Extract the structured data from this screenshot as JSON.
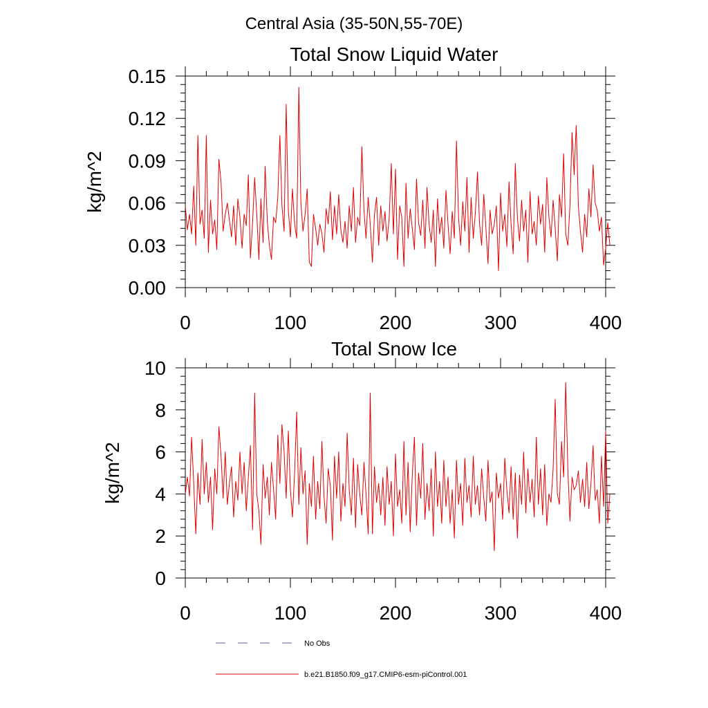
{
  "figure_title": "Central Asia (35-50N,55-70E)",
  "colors": {
    "model": "#e00000",
    "obs": "#5a5a9a",
    "axis": "#000000"
  },
  "legend": [
    {
      "label": "No Obs",
      "style": "dashed",
      "color": "#5a5a9a"
    },
    {
      "label": "b.e21.B1850.f09_g17.CMIP6-esm-piControl.001",
      "style": "solid",
      "color": "#e00000"
    }
  ],
  "chart_data": [
    {
      "type": "line",
      "title": "Total Snow Liquid Water",
      "xlabel": "",
      "ylabel": "kg/m^2",
      "xlim": [
        0,
        400
      ],
      "ylim": [
        0,
        0.15
      ],
      "x_ticks": [
        0,
        100,
        200,
        300,
        400
      ],
      "x_tick_labels": [
        "0",
        "100",
        "200",
        "300",
        "400"
      ],
      "y_ticks": [
        0,
        0.03,
        0.06,
        0.09,
        0.12,
        0.15
      ],
      "y_tick_labels": [
        "0.00",
        "0.03",
        "0.06",
        "0.09",
        "0.12",
        "0.15"
      ],
      "series": [
        {
          "name": "b.e21.B1850.f09_g17.CMIP6-esm-piControl.001",
          "x_start": 0,
          "x_step": 2,
          "values": [
            0.058,
            0.041,
            0.052,
            0.038,
            0.072,
            0.03,
            0.108,
            0.045,
            0.055,
            0.035,
            0.108,
            0.025,
            0.062,
            0.038,
            0.048,
            0.027,
            0.091,
            0.075,
            0.04,
            0.052,
            0.06,
            0.048,
            0.036,
            0.058,
            0.03,
            0.063,
            0.05,
            0.028,
            0.052,
            0.044,
            0.08,
            0.021,
            0.046,
            0.078,
            0.052,
            0.02,
            0.063,
            0.032,
            0.086,
            0.047,
            0.03,
            0.02,
            0.05,
            0.046,
            0.064,
            0.108,
            0.058,
            0.04,
            0.13,
            0.055,
            0.036,
            0.07,
            0.045,
            0.035,
            0.142,
            0.06,
            0.04,
            0.052,
            0.07,
            0.018,
            0.015,
            0.052,
            0.042,
            0.03,
            0.045,
            0.038,
            0.025,
            0.056,
            0.045,
            0.068,
            0.034,
            0.058,
            0.038,
            0.066,
            0.041,
            0.032,
            0.047,
            0.028,
            0.058,
            0.04,
            0.071,
            0.032,
            0.05,
            0.044,
            0.1,
            0.055,
            0.035,
            0.064,
            0.045,
            0.018,
            0.052,
            0.064,
            0.03,
            0.058,
            0.04,
            0.054,
            0.033,
            0.049,
            0.088,
            0.038,
            0.084,
            0.02,
            0.058,
            0.05,
            0.015,
            0.074,
            0.035,
            0.056,
            0.042,
            0.027,
            0.077,
            0.046,
            0.037,
            0.062,
            0.028,
            0.071,
            0.045,
            0.032,
            0.055,
            0.015,
            0.063,
            0.038,
            0.05,
            0.028,
            0.069,
            0.045,
            0.024,
            0.054,
            0.035,
            0.104,
            0.05,
            0.03,
            0.061,
            0.04,
            0.078,
            0.025,
            0.064,
            0.035,
            0.053,
            0.082,
            0.045,
            0.03,
            0.066,
            0.043,
            0.017,
            0.055,
            0.038,
            0.045,
            0.058,
            0.012,
            0.067,
            0.04,
            0.052,
            0.029,
            0.075,
            0.045,
            0.024,
            0.088,
            0.05,
            0.033,
            0.062,
            0.04,
            0.055,
            0.018,
            0.068,
            0.038,
            0.047,
            0.03,
            0.065,
            0.045,
            0.059,
            0.025,
            0.078,
            0.05,
            0.036,
            0.062,
            0.042,
            0.019,
            0.066,
            0.05,
            0.095,
            0.038,
            0.03,
            0.058,
            0.11,
            0.08,
            0.115,
            0.058,
            0.04,
            0.025,
            0.052,
            0.036,
            0.07,
            0.05,
            0.087,
            0.06,
            0.055,
            0.04,
            0.05,
            0.016,
            0.028,
            0.046,
            0.03
          ]
        }
      ]
    },
    {
      "type": "line",
      "title": "Total Snow Ice",
      "xlabel": "",
      "ylabel": "kg/m^2",
      "xlim": [
        0,
        400
      ],
      "ylim": [
        0,
        10
      ],
      "x_ticks": [
        0,
        100,
        200,
        300,
        400
      ],
      "x_tick_labels": [
        "0",
        "100",
        "200",
        "300",
        "400"
      ],
      "y_ticks": [
        0,
        2,
        4,
        6,
        8,
        10
      ],
      "y_tick_labels": [
        "0",
        "2",
        "4",
        "6",
        "8",
        "10"
      ],
      "series": [
        {
          "name": "b.e21.B1850.f09_g17.CMIP6-esm-piControl.001",
          "x_start": 0,
          "x_step": 2,
          "values": [
            4.0,
            4.8,
            3.9,
            6.7,
            4.5,
            2.1,
            5.0,
            3.5,
            6.6,
            4.0,
            5.5,
            3.6,
            4.8,
            2.3,
            5.2,
            4.0,
            7.2,
            5.8,
            3.8,
            6.0,
            3.5,
            4.5,
            5.3,
            2.9,
            4.6,
            3.7,
            6.0,
            4.0,
            5.5,
            3.2,
            4.8,
            6.3,
            2.3,
            8.8,
            4.0,
            3.2,
            1.6,
            5.4,
            3.8,
            4.8,
            3.0,
            5.5,
            4.2,
            2.8,
            6.8,
            4.5,
            7.3,
            6.0,
            3.8,
            7.0,
            4.2,
            2.9,
            5.0,
            7.9,
            3.5,
            6.2,
            4.0,
            5.1,
            1.6,
            4.5,
            3.4,
            5.8,
            2.8,
            4.6,
            3.3,
            6.5,
            3.9,
            2.6,
            5.2,
            4.4,
            1.8,
            5.8,
            3.8,
            6.0,
            2.7,
            4.5,
            3.4,
            6.9,
            4.2,
            3.0,
            5.7,
            2.4,
            5.4,
            4.0,
            3.0,
            5.5,
            4.0,
            2.1,
            8.8,
            2.1,
            5.3,
            3.6,
            4.5,
            3.0,
            4.8,
            2.5,
            5.3,
            3.5,
            4.6,
            2.0,
            5.9,
            3.4,
            4.2,
            2.6,
            6.5,
            3.0,
            5.5,
            2.2,
            4.9,
            6.7,
            2.5,
            5.0,
            3.8,
            6.4,
            2.8,
            4.5,
            3.2,
            5.2,
            2.0,
            6.0,
            3.4,
            4.6,
            2.6,
            5.6,
            3.4,
            4.8,
            2.6,
            4.2,
            1.9,
            5.6,
            3.5,
            4.5,
            2.5,
            5.7,
            3.6,
            4.4,
            2.9,
            5.8,
            3.5,
            4.4,
            3.0,
            5.2,
            3.8,
            2.7,
            5.6,
            3.6,
            4.1,
            1.3,
            5.0,
            3.8,
            4.5,
            2.8,
            5.7,
            4.2,
            3.1,
            5.3,
            2.8,
            5.0,
            1.9,
            4.9,
            3.5,
            6.0,
            3.1,
            5.2,
            3.6,
            4.7,
            2.9,
            6.7,
            3.5,
            5.2,
            3.0,
            5.4,
            2.5,
            4.0,
            3.6,
            5.2,
            8.5,
            4.0,
            3.5,
            6.5,
            4.8,
            9.3,
            5.2,
            2.7,
            4.8,
            4.2,
            4.4,
            5.1,
            3.6,
            4.7,
            3.4,
            5.5,
            3.3,
            4.5,
            6.3,
            3.7,
            4.2,
            2.6,
            5.8,
            3.4,
            7.0,
            2.6,
            4.0
          ]
        }
      ]
    }
  ]
}
